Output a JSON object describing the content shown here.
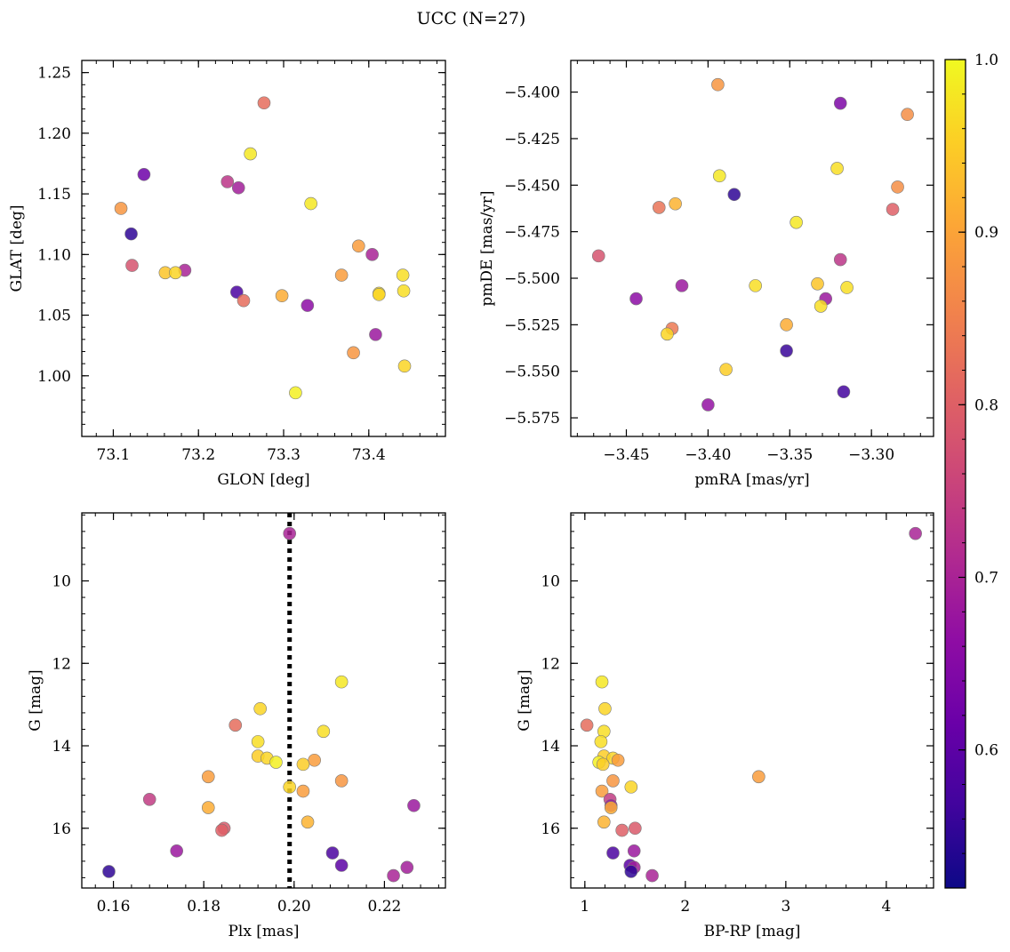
{
  "figure": {
    "title": "UCC (N=27)"
  },
  "colorbar": {
    "colormap": "plasma",
    "range": [
      0.52,
      1.0
    ],
    "ticks": [
      "0.6",
      "0.7",
      "0.8",
      "0.9",
      "1.0"
    ],
    "tick_values": [
      0.6,
      0.7,
      0.8,
      0.9,
      1.0
    ]
  },
  "chart_data": [
    {
      "type": "scatter",
      "name": "glon-glat",
      "xlabel": "GLON [deg]",
      "ylabel": "GLAT [deg]",
      "xlim": [
        73.063,
        73.49
      ],
      "ylim": [
        0.95,
        1.26
      ],
      "xticks": [
        {
          "v": 73.1,
          "label": "73.1"
        },
        {
          "v": 73.2,
          "label": "73.2"
        },
        {
          "v": 73.3,
          "label": "73.3"
        },
        {
          "v": 73.4,
          "label": "73.4"
        }
      ],
      "yticks": [
        {
          "v": 1.0,
          "label": "1.00"
        },
        {
          "v": 1.05,
          "label": "1.05"
        },
        {
          "v": 1.1,
          "label": "1.10"
        },
        {
          "v": 1.15,
          "label": "1.15"
        },
        {
          "v": 1.2,
          "label": "1.20"
        },
        {
          "v": 1.25,
          "label": "1.25"
        }
      ],
      "points": [
        {
          "x": 73.277,
          "y": 1.225,
          "c": 0.82
        },
        {
          "x": 73.261,
          "y": 1.183,
          "c": 0.98
        },
        {
          "x": 73.136,
          "y": 1.166,
          "c": 0.62
        },
        {
          "x": 73.234,
          "y": 1.16,
          "c": 0.73
        },
        {
          "x": 73.247,
          "y": 1.155,
          "c": 0.69
        },
        {
          "x": 73.332,
          "y": 1.142,
          "c": 0.98
        },
        {
          "x": 73.109,
          "y": 1.138,
          "c": 0.88
        },
        {
          "x": 73.121,
          "y": 1.117,
          "c": 0.55
        },
        {
          "x": 73.388,
          "y": 1.107,
          "c": 0.89
        },
        {
          "x": 73.404,
          "y": 1.1,
          "c": 0.7
        },
        {
          "x": 73.122,
          "y": 1.091,
          "c": 0.78
        },
        {
          "x": 73.184,
          "y": 1.087,
          "c": 0.7
        },
        {
          "x": 73.161,
          "y": 1.085,
          "c": 0.94
        },
        {
          "x": 73.173,
          "y": 1.085,
          "c": 0.96
        },
        {
          "x": 73.368,
          "y": 1.083,
          "c": 0.89
        },
        {
          "x": 73.44,
          "y": 1.083,
          "c": 0.97
        },
        {
          "x": 73.441,
          "y": 1.07,
          "c": 0.97
        },
        {
          "x": 73.245,
          "y": 1.069,
          "c": 0.58
        },
        {
          "x": 73.412,
          "y": 1.068,
          "c": 0.97
        },
        {
          "x": 73.412,
          "y": 1.067,
          "c": 0.96
        },
        {
          "x": 73.298,
          "y": 1.066,
          "c": 0.91
        },
        {
          "x": 73.253,
          "y": 1.062,
          "c": 0.82
        },
        {
          "x": 73.328,
          "y": 1.058,
          "c": 0.66
        },
        {
          "x": 73.408,
          "y": 1.034,
          "c": 0.68
        },
        {
          "x": 73.382,
          "y": 1.019,
          "c": 0.88
        },
        {
          "x": 73.442,
          "y": 1.008,
          "c": 0.96
        },
        {
          "x": 73.314,
          "y": 0.986,
          "c": 0.99
        }
      ]
    },
    {
      "type": "scatter",
      "name": "pmra-pmde",
      "xlabel": "pmRA [mas/yr]",
      "ylabel": "pmDE [mas/yr]",
      "xlim": [
        -3.484,
        -3.262
      ],
      "ylim": [
        -5.585,
        -5.383
      ],
      "xticks": [
        {
          "v": -3.45,
          "label": "−3.45"
        },
        {
          "v": -3.4,
          "label": "−3.40"
        },
        {
          "v": -3.35,
          "label": "−3.35"
        },
        {
          "v": -3.3,
          "label": "−3.30"
        }
      ],
      "yticks": [
        {
          "v": -5.4,
          "label": "−5.400"
        },
        {
          "v": -5.425,
          "label": "−5.425"
        },
        {
          "v": -5.45,
          "label": "−5.450"
        },
        {
          "v": -5.475,
          "label": "−5.475"
        },
        {
          "v": -5.5,
          "label": "−5.500"
        },
        {
          "v": -5.525,
          "label": "−5.525"
        },
        {
          "v": -5.55,
          "label": "−5.550"
        },
        {
          "v": -5.575,
          "label": "−5.575"
        }
      ],
      "points": [
        {
          "x": -3.394,
          "y": -5.396,
          "c": 0.88
        },
        {
          "x": -3.319,
          "y": -5.406,
          "c": 0.64
        },
        {
          "x": -3.278,
          "y": -5.412,
          "c": 0.87
        },
        {
          "x": -3.321,
          "y": -5.441,
          "c": 0.97
        },
        {
          "x": -3.393,
          "y": -5.445,
          "c": 0.98
        },
        {
          "x": -3.284,
          "y": -5.451,
          "c": 0.87
        },
        {
          "x": -3.384,
          "y": -5.455,
          "c": 0.55
        },
        {
          "x": -3.42,
          "y": -5.46,
          "c": 0.92
        },
        {
          "x": -3.43,
          "y": -5.462,
          "c": 0.83
        },
        {
          "x": -3.287,
          "y": -5.463,
          "c": 0.8
        },
        {
          "x": -3.346,
          "y": -5.47,
          "c": 0.98
        },
        {
          "x": -3.467,
          "y": -5.488,
          "c": 0.78
        },
        {
          "x": -3.319,
          "y": -5.49,
          "c": 0.73
        },
        {
          "x": -3.333,
          "y": -5.503,
          "c": 0.94
        },
        {
          "x": -3.371,
          "y": -5.504,
          "c": 0.97
        },
        {
          "x": -3.416,
          "y": -5.504,
          "c": 0.68
        },
        {
          "x": -3.315,
          "y": -5.505,
          "c": 0.97
        },
        {
          "x": -3.444,
          "y": -5.511,
          "c": 0.66
        },
        {
          "x": -3.328,
          "y": -5.511,
          "c": 0.68
        },
        {
          "x": -3.331,
          "y": -5.515,
          "c": 0.97
        },
        {
          "x": -3.352,
          "y": -5.525,
          "c": 0.91
        },
        {
          "x": -3.422,
          "y": -5.527,
          "c": 0.84
        },
        {
          "x": -3.425,
          "y": -5.53,
          "c": 0.96
        },
        {
          "x": -3.352,
          "y": -5.539,
          "c": 0.56
        },
        {
          "x": -3.389,
          "y": -5.549,
          "c": 0.95
        },
        {
          "x": -3.317,
          "y": -5.561,
          "c": 0.57
        },
        {
          "x": -3.4,
          "y": -5.568,
          "c": 0.67
        }
      ]
    },
    {
      "type": "scatter",
      "name": "plx-g",
      "xlabel": "Plx [mas]",
      "ylabel": "G [mag]",
      "xlim": [
        0.153,
        0.2335
      ],
      "ylim": [
        17.45,
        8.35
      ],
      "vline": {
        "x": 0.199,
        "style": "dotted"
      },
      "xticks": [
        {
          "v": 0.16,
          "label": "0.16"
        },
        {
          "v": 0.18,
          "label": "0.18"
        },
        {
          "v": 0.2,
          "label": "0.20"
        },
        {
          "v": 0.22,
          "label": "0.22"
        }
      ],
      "yticks": [
        {
          "v": 10,
          "label": "10"
        },
        {
          "v": 12,
          "label": "12"
        },
        {
          "v": 14,
          "label": "14"
        },
        {
          "v": 16,
          "label": "16"
        }
      ],
      "points": [
        {
          "x": 0.199,
          "y": 8.85,
          "c": 0.7
        },
        {
          "x": 0.2105,
          "y": 12.45,
          "c": 0.98
        },
        {
          "x": 0.1925,
          "y": 13.1,
          "c": 0.96
        },
        {
          "x": 0.187,
          "y": 13.5,
          "c": 0.82
        },
        {
          "x": 0.2065,
          "y": 13.65,
          "c": 0.97
        },
        {
          "x": 0.192,
          "y": 13.9,
          "c": 0.97
        },
        {
          "x": 0.192,
          "y": 14.25,
          "c": 0.95
        },
        {
          "x": 0.194,
          "y": 14.3,
          "c": 0.96
        },
        {
          "x": 0.2045,
          "y": 14.35,
          "c": 0.89
        },
        {
          "x": 0.196,
          "y": 14.4,
          "c": 0.99
        },
        {
          "x": 0.202,
          "y": 14.45,
          "c": 0.95
        },
        {
          "x": 0.181,
          "y": 14.75,
          "c": 0.89
        },
        {
          "x": 0.2105,
          "y": 14.85,
          "c": 0.88
        },
        {
          "x": 0.199,
          "y": 15.0,
          "c": 0.96
        },
        {
          "x": 0.202,
          "y": 15.1,
          "c": 0.89
        },
        {
          "x": 0.168,
          "y": 15.3,
          "c": 0.74
        },
        {
          "x": 0.2265,
          "y": 15.45,
          "c": 0.68
        },
        {
          "x": 0.181,
          "y": 15.5,
          "c": 0.91
        },
        {
          "x": 0.203,
          "y": 15.85,
          "c": 0.92
        },
        {
          "x": 0.1845,
          "y": 16.0,
          "c": 0.79
        },
        {
          "x": 0.184,
          "y": 16.05,
          "c": 0.8
        },
        {
          "x": 0.174,
          "y": 16.55,
          "c": 0.68
        },
        {
          "x": 0.2085,
          "y": 16.6,
          "c": 0.58
        },
        {
          "x": 0.2105,
          "y": 16.9,
          "c": 0.6
        },
        {
          "x": 0.225,
          "y": 16.95,
          "c": 0.69
        },
        {
          "x": 0.159,
          "y": 17.05,
          "c": 0.55
        },
        {
          "x": 0.222,
          "y": 17.15,
          "c": 0.7
        }
      ]
    },
    {
      "type": "scatter",
      "name": "bprp-g",
      "xlabel": "BP-RP [mag]",
      "ylabel": "G [mag]",
      "xlim": [
        0.86,
        4.47
      ],
      "ylim": [
        17.45,
        8.35
      ],
      "xticks": [
        {
          "v": 1,
          "label": "1"
        },
        {
          "v": 2,
          "label": "2"
        },
        {
          "v": 3,
          "label": "3"
        },
        {
          "v": 4,
          "label": "4"
        }
      ],
      "yticks": [
        {
          "v": 10,
          "label": "10"
        },
        {
          "v": 12,
          "label": "12"
        },
        {
          "v": 14,
          "label": "14"
        },
        {
          "v": 16,
          "label": "16"
        }
      ],
      "points": [
        {
          "x": 4.29,
          "y": 8.85,
          "c": 0.7
        },
        {
          "x": 1.17,
          "y": 12.45,
          "c": 0.98
        },
        {
          "x": 1.2,
          "y": 13.1,
          "c": 0.96
        },
        {
          "x": 1.02,
          "y": 13.5,
          "c": 0.82
        },
        {
          "x": 1.19,
          "y": 13.65,
          "c": 0.97
        },
        {
          "x": 1.16,
          "y": 13.9,
          "c": 0.97
        },
        {
          "x": 1.19,
          "y": 14.25,
          "c": 0.95
        },
        {
          "x": 1.28,
          "y": 14.3,
          "c": 0.96
        },
        {
          "x": 1.33,
          "y": 14.35,
          "c": 0.89
        },
        {
          "x": 1.14,
          "y": 14.4,
          "c": 0.99
        },
        {
          "x": 1.18,
          "y": 14.45,
          "c": 0.95
        },
        {
          "x": 2.73,
          "y": 14.75,
          "c": 0.89
        },
        {
          "x": 1.28,
          "y": 14.85,
          "c": 0.88
        },
        {
          "x": 1.46,
          "y": 15.0,
          "c": 0.96
        },
        {
          "x": 1.17,
          "y": 15.1,
          "c": 0.89
        },
        {
          "x": 1.25,
          "y": 15.3,
          "c": 0.74
        },
        {
          "x": 1.26,
          "y": 15.45,
          "c": 0.68
        },
        {
          "x": 1.26,
          "y": 15.5,
          "c": 0.91
        },
        {
          "x": 1.19,
          "y": 15.85,
          "c": 0.92
        },
        {
          "x": 1.5,
          "y": 16.0,
          "c": 0.79
        },
        {
          "x": 1.37,
          "y": 16.05,
          "c": 0.8
        },
        {
          "x": 1.49,
          "y": 16.55,
          "c": 0.68
        },
        {
          "x": 1.28,
          "y": 16.6,
          "c": 0.58
        },
        {
          "x": 1.45,
          "y": 16.9,
          "c": 0.6
        },
        {
          "x": 1.49,
          "y": 16.95,
          "c": 0.69
        },
        {
          "x": 1.46,
          "y": 17.05,
          "c": 0.55
        },
        {
          "x": 1.67,
          "y": 17.15,
          "c": 0.7
        }
      ]
    }
  ]
}
